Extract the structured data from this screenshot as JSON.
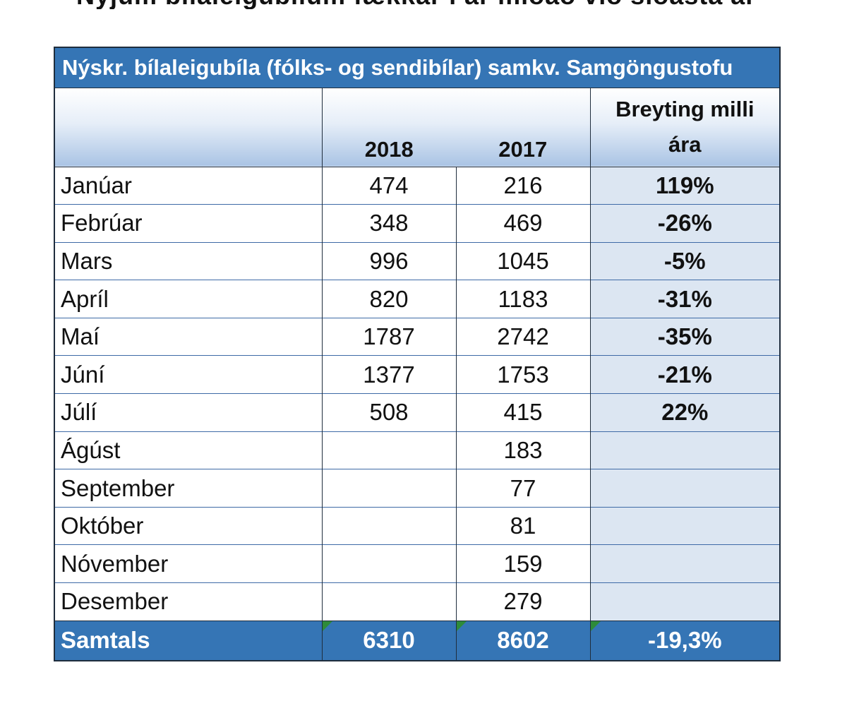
{
  "page_heading": "Nýjum bílaleigubílum fækkar í ár miðað við síðasta ár",
  "table": {
    "title": "Nýskr. bílaleigubíla (fólks- og sendibílar) samkv. Samgöngustofu",
    "header": {
      "col_2018": "2018",
      "col_2017": "2017",
      "col_change_line1": "Breyting milli",
      "col_change_line2": "ára"
    },
    "rows": [
      {
        "month": "Janúar",
        "y2018": "474",
        "y2017": "216",
        "change": "119%"
      },
      {
        "month": "Febrúar",
        "y2018": "348",
        "y2017": "469",
        "change": "-26%"
      },
      {
        "month": "Mars",
        "y2018": "996",
        "y2017": "1045",
        "change": "-5%"
      },
      {
        "month": "Apríl",
        "y2018": "820",
        "y2017": "1183",
        "change": "-31%"
      },
      {
        "month": "Maí",
        "y2018": "1787",
        "y2017": "2742",
        "change": "-35%"
      },
      {
        "month": "Júní",
        "y2018": "1377",
        "y2017": "1753",
        "change": "-21%"
      },
      {
        "month": "Júlí",
        "y2018": "508",
        "y2017": "415",
        "change": "22%"
      },
      {
        "month": "Ágúst",
        "y2018": "",
        "y2017": "183",
        "change": ""
      },
      {
        "month": "September",
        "y2018": "",
        "y2017": "77",
        "change": ""
      },
      {
        "month": "Október",
        "y2018": "",
        "y2017": "81",
        "change": ""
      },
      {
        "month": "Nóvember",
        "y2018": "",
        "y2017": "159",
        "change": ""
      },
      {
        "month": "Desember",
        "y2018": "",
        "y2017": "279",
        "change": ""
      }
    ],
    "total": {
      "label": "Samtals",
      "y2018": "6310",
      "y2017": "8602",
      "change": "-19,3%"
    }
  },
  "colors": {
    "header_blue": "#3575b5",
    "change_column_fill": "#dce6f2",
    "comment_marker": "#2e8b3a"
  }
}
